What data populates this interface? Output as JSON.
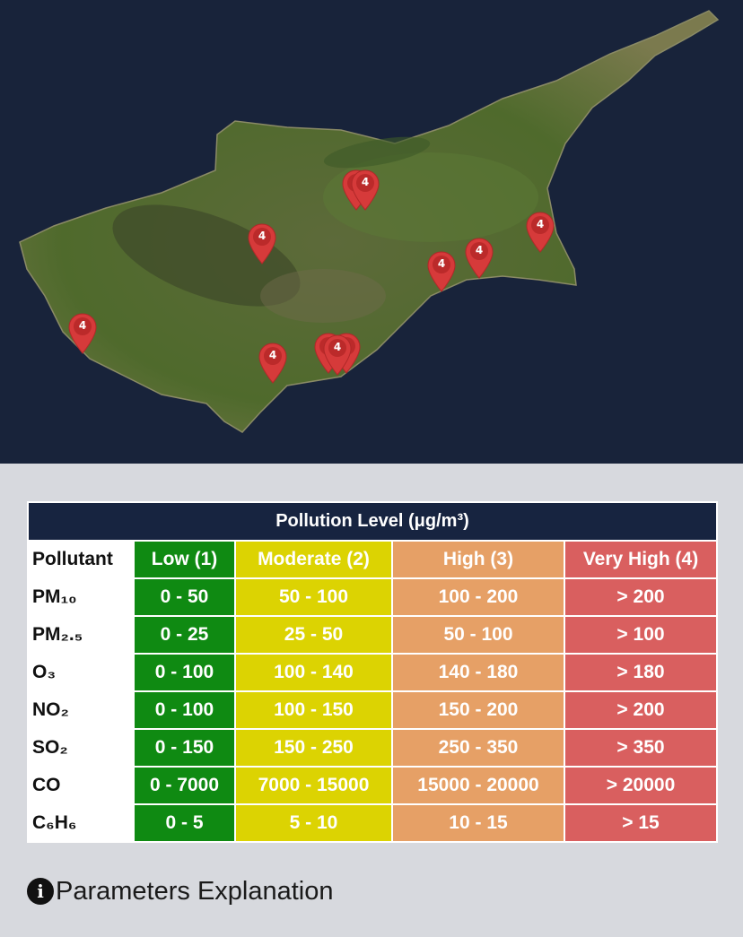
{
  "map": {
    "markers": [
      {
        "label": "4"
      },
      {
        "label": "4"
      },
      {
        "label": "4"
      },
      {
        "label": "4"
      },
      {
        "label": "4"
      },
      {
        "label": "4"
      },
      {
        "label": "4"
      },
      {
        "label": "4"
      },
      {
        "label": "4"
      },
      {
        "label": "4"
      },
      {
        "label": "4"
      }
    ]
  },
  "table": {
    "title": "Pollution Level (μg/m³)",
    "headers": {
      "pollutant": "Pollutant",
      "low": "Low (1)",
      "moderate": "Moderate (2)",
      "high": "High (3)",
      "very_high": "Very High (4)"
    },
    "rows": [
      {
        "name": "PM₁₀",
        "low": "0 - 50",
        "moderate": "50 - 100",
        "high": "100 - 200",
        "very_high": "> 200"
      },
      {
        "name": "PM₂.₅",
        "low": "0 - 25",
        "moderate": "25 - 50",
        "high": "50 - 100",
        "very_high": "> 100"
      },
      {
        "name": "O₃",
        "low": "0 - 100",
        "moderate": "100 - 140",
        "high": "140 - 180",
        "very_high": "> 180"
      },
      {
        "name": "NO₂",
        "low": "0 - 100",
        "moderate": "100 - 150",
        "high": "150 - 200",
        "very_high": "> 200"
      },
      {
        "name": "SO₂",
        "low": "0 - 150",
        "moderate": "150 - 250",
        "high": "250 - 350",
        "very_high": "> 350"
      },
      {
        "name": "CO",
        "low": "0 - 7000",
        "moderate": "7000 - 15000",
        "high": "15000 - 20000",
        "very_high": "> 20000"
      },
      {
        "name": "C₆H₆",
        "low": "0 - 5",
        "moderate": "5 - 10",
        "high": "10 - 15",
        "very_high": "> 15"
      }
    ]
  },
  "explanation": {
    "icon": "info-icon",
    "label": "Parameters Explanation"
  },
  "colors": {
    "low": "#0f8a12",
    "moderate": "#dcd302",
    "high": "#e6a066",
    "very_high": "#d95f5f",
    "marker": "#d63a3a"
  }
}
